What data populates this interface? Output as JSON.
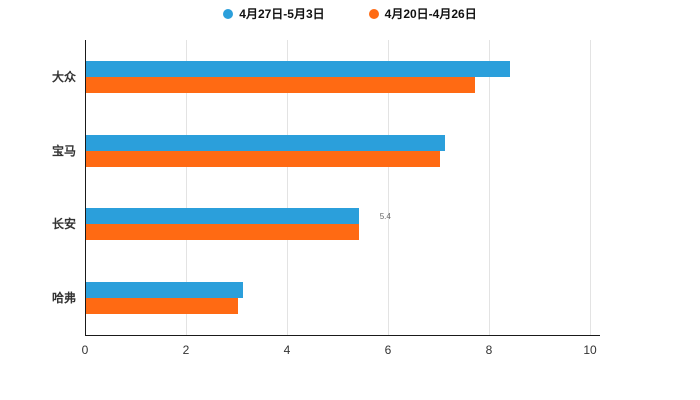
{
  "legend": {
    "items": [
      {
        "label": "4月27日-5月3日",
        "color": "#2b9fdb"
      },
      {
        "label": "4月20日-4月26日",
        "color": "#ff6a13"
      }
    ]
  },
  "chart_data": {
    "type": "bar",
    "orientation": "horizontal",
    "title": "",
    "xlabel": "",
    "ylabel": "",
    "categories": [
      "大众",
      "宝马",
      "长安",
      "哈弗"
    ],
    "series": [
      {
        "name": "4月27日-5月3日",
        "color": "#2b9fdb",
        "values": [
          8.4,
          7.1,
          5.4,
          3.1
        ]
      },
      {
        "name": "4月20日-4月26日",
        "color": "#ff6a13",
        "values": [
          7.7,
          7.0,
          5.4,
          3.0
        ]
      }
    ],
    "xlim": [
      0,
      10
    ],
    "x_ticks": [
      0,
      2,
      4,
      6,
      8,
      10
    ],
    "grid": true,
    "legend_position": "top",
    "annotation": {
      "text": "5.4",
      "category_index": 2,
      "series_index": 0
    }
  }
}
